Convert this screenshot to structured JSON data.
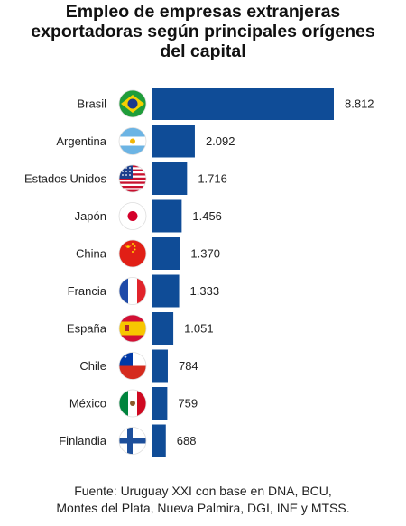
{
  "chart_data": {
    "type": "bar",
    "orientation": "horizontal",
    "title_lines": [
      "Empleo de empresas extranjeras",
      "exportadoras según principales orígenes",
      "del capital"
    ],
    "categories": [
      "Brasil",
      "Argentina",
      "Estados Unidos",
      "Japón",
      "China",
      "Francia",
      "España",
      "Chile",
      "México",
      "Finlandia"
    ],
    "values": [
      8812,
      2092,
      1716,
      1456,
      1370,
      1333,
      1051,
      784,
      759,
      688
    ],
    "value_labels": [
      "8.812",
      "2.092",
      "1.716",
      "1.456",
      "1.370",
      "1.333",
      "1.051",
      "784",
      "759",
      "688"
    ],
    "flag_icons": [
      "brazil-flag-icon",
      "argentina-flag-icon",
      "usa-flag-icon",
      "japan-flag-icon",
      "china-flag-icon",
      "france-flag-icon",
      "spain-flag-icon",
      "chile-flag-icon",
      "mexico-flag-icon",
      "finland-flag-icon"
    ],
    "bar_color": "#0f4c97",
    "grid": false,
    "legend": "none"
  },
  "source_lines": [
    "Fuente: Uruguay XXI con base en DNA, BCU,",
    "Montes del Plata, Nueva Palmira, DGI, INE y MTSS."
  ]
}
